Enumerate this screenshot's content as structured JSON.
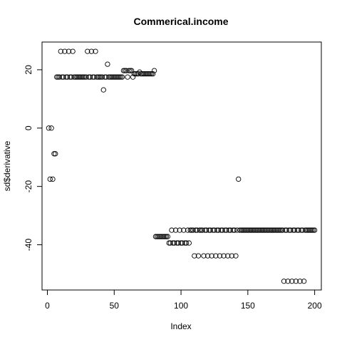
{
  "chart_data": {
    "type": "scatter",
    "title": "Commerical.income",
    "xlabel": "Index",
    "ylabel": "sd$derivative",
    "xlim": [
      -4,
      205
    ],
    "ylim": [
      -55.5,
      29.5
    ],
    "xticks": [
      0,
      50,
      100,
      150,
      200
    ],
    "yticks": [
      -40,
      -20,
      0,
      20
    ],
    "marker": "open-circle",
    "grid": false,
    "series": [
      {
        "points": [
          [
            1,
            0
          ],
          [
            2,
            -17.5
          ],
          [
            3,
            0
          ],
          [
            4,
            -17.5
          ],
          [
            5,
            -8.8
          ],
          [
            6,
            -8.8
          ],
          [
            7,
            17.5
          ],
          [
            8,
            17.5
          ],
          [
            9,
            17.5
          ],
          [
            10,
            26.3
          ],
          [
            11,
            17.5
          ],
          [
            12,
            17.5
          ],
          [
            13,
            26.3
          ],
          [
            14,
            17.5
          ],
          [
            15,
            17.5
          ],
          [
            16,
            26.3
          ],
          [
            17,
            17.5
          ],
          [
            18,
            17.5
          ],
          [
            19,
            26.3
          ],
          [
            20,
            17.5
          ],
          [
            21,
            17.5
          ],
          [
            22,
            17.5
          ],
          [
            23,
            17.5
          ],
          [
            24,
            17.5
          ],
          [
            25,
            17.5
          ],
          [
            26,
            17.5
          ],
          [
            27,
            17.5
          ],
          [
            28,
            17.5
          ],
          [
            29,
            17.5
          ],
          [
            30,
            26.3
          ],
          [
            31,
            17.5
          ],
          [
            32,
            17.5
          ],
          [
            33,
            26.3
          ],
          [
            34,
            17.5
          ],
          [
            35,
            17.5
          ],
          [
            36,
            26.3
          ],
          [
            37,
            17.5
          ],
          [
            38,
            17.5
          ],
          [
            39,
            17.5
          ],
          [
            40,
            17.5
          ],
          [
            41,
            17.5
          ],
          [
            42,
            13.1
          ],
          [
            43,
            17.5
          ],
          [
            44,
            17.5
          ],
          [
            45,
            21.9
          ],
          [
            46,
            17.5
          ],
          [
            47,
            17.5
          ],
          [
            48,
            17.5
          ],
          [
            49,
            17.5
          ],
          [
            50,
            17.5
          ],
          [
            51,
            17.5
          ],
          [
            52,
            17.5
          ],
          [
            53,
            17.5
          ],
          [
            54,
            17.5
          ],
          [
            55,
            17.5
          ],
          [
            56,
            17.5
          ],
          [
            57,
            19.7
          ],
          [
            58,
            19.7
          ],
          [
            59,
            19.7
          ],
          [
            60,
            17.5
          ],
          [
            61,
            19.7
          ],
          [
            62,
            19.7
          ],
          [
            63,
            19.7
          ],
          [
            64,
            17.5
          ],
          [
            65,
            18.6
          ],
          [
            66,
            18.6
          ],
          [
            67,
            18.6
          ],
          [
            68,
            18.6
          ],
          [
            69,
            19.2
          ],
          [
            70,
            18.6
          ],
          [
            71,
            18.6
          ],
          [
            72,
            18.6
          ],
          [
            73,
            18.6
          ],
          [
            74,
            18.6
          ],
          [
            75,
            18.6
          ],
          [
            76,
            18.6
          ],
          [
            77,
            18.6
          ],
          [
            78,
            18.6
          ],
          [
            79,
            18.6
          ],
          [
            80,
            19.7
          ],
          [
            81,
            -37.2
          ],
          [
            82,
            -37.2
          ],
          [
            83,
            -37.2
          ],
          [
            84,
            -37.2
          ],
          [
            85,
            -37.2
          ],
          [
            86,
            -37.2
          ],
          [
            87,
            -37.2
          ],
          [
            88,
            -37.2
          ],
          [
            89,
            -37.2
          ],
          [
            90,
            -37.2
          ],
          [
            91,
            -39.4
          ],
          [
            92,
            -39.4
          ],
          [
            93,
            -35
          ],
          [
            94,
            -39.4
          ],
          [
            95,
            -39.4
          ],
          [
            96,
            -35
          ],
          [
            97,
            -39.4
          ],
          [
            98,
            -39.4
          ],
          [
            99,
            -35
          ],
          [
            100,
            -39.4
          ],
          [
            101,
            -39.4
          ],
          [
            102,
            -35
          ],
          [
            103,
            -39.4
          ],
          [
            104,
            -39.4
          ],
          [
            105,
            -35
          ],
          [
            106,
            -39.4
          ],
          [
            107,
            -35
          ],
          [
            108,
            -35
          ],
          [
            109,
            -35
          ],
          [
            110,
            -43.8
          ],
          [
            111,
            -35
          ],
          [
            112,
            -35
          ],
          [
            113,
            -43.8
          ],
          [
            114,
            -35
          ],
          [
            115,
            -35
          ],
          [
            116,
            -35
          ],
          [
            117,
            -43.8
          ],
          [
            118,
            -35
          ],
          [
            119,
            -35
          ],
          [
            120,
            -43.8
          ],
          [
            121,
            -35
          ],
          [
            122,
            -35
          ],
          [
            123,
            -43.8
          ],
          [
            124,
            -35
          ],
          [
            125,
            -35
          ],
          [
            126,
            -43.8
          ],
          [
            127,
            -35
          ],
          [
            128,
            -35
          ],
          [
            129,
            -43.8
          ],
          [
            130,
            -35
          ],
          [
            131,
            -35
          ],
          [
            132,
            -43.8
          ],
          [
            133,
            -35
          ],
          [
            134,
            -35
          ],
          [
            135,
            -43.8
          ],
          [
            136,
            -35
          ],
          [
            137,
            -35
          ],
          [
            138,
            -43.8
          ],
          [
            139,
            -35
          ],
          [
            140,
            -35
          ],
          [
            141,
            -43.8
          ],
          [
            142,
            -35
          ],
          [
            143,
            -17.5
          ],
          [
            144,
            -35
          ],
          [
            145,
            -35
          ],
          [
            146,
            -35
          ],
          [
            147,
            -35
          ],
          [
            148,
            -35
          ],
          [
            149,
            -35
          ],
          [
            150,
            -35
          ],
          [
            151,
            -35
          ],
          [
            152,
            -35
          ],
          [
            153,
            -35
          ],
          [
            154,
            -35
          ],
          [
            155,
            -35
          ],
          [
            156,
            -35
          ],
          [
            157,
            -35
          ],
          [
            158,
            -35
          ],
          [
            159,
            -35
          ],
          [
            160,
            -35
          ],
          [
            161,
            -35
          ],
          [
            162,
            -35
          ],
          [
            163,
            -35
          ],
          [
            164,
            -35
          ],
          [
            165,
            -35
          ],
          [
            166,
            -35
          ],
          [
            167,
            -35
          ],
          [
            168,
            -35
          ],
          [
            169,
            -35
          ],
          [
            170,
            -35
          ],
          [
            171,
            -35
          ],
          [
            172,
            -35
          ],
          [
            173,
            -35
          ],
          [
            174,
            -35
          ],
          [
            175,
            -35
          ],
          [
            176,
            -35
          ],
          [
            177,
            -52.5
          ],
          [
            178,
            -35
          ],
          [
            179,
            -35
          ],
          [
            180,
            -52.5
          ],
          [
            181,
            -35
          ],
          [
            182,
            -35
          ],
          [
            183,
            -52.5
          ],
          [
            184,
            -35
          ],
          [
            185,
            -35
          ],
          [
            186,
            -52.5
          ],
          [
            187,
            -35
          ],
          [
            188,
            -35
          ],
          [
            189,
            -52.5
          ],
          [
            190,
            -35
          ],
          [
            191,
            -35
          ],
          [
            192,
            -52.5
          ],
          [
            193,
            -35
          ],
          [
            194,
            -35
          ],
          [
            195,
            -35
          ],
          [
            196,
            -35
          ],
          [
            197,
            -35
          ],
          [
            198,
            -35
          ],
          [
            199,
            -35
          ],
          [
            200,
            -35
          ]
        ]
      }
    ]
  }
}
